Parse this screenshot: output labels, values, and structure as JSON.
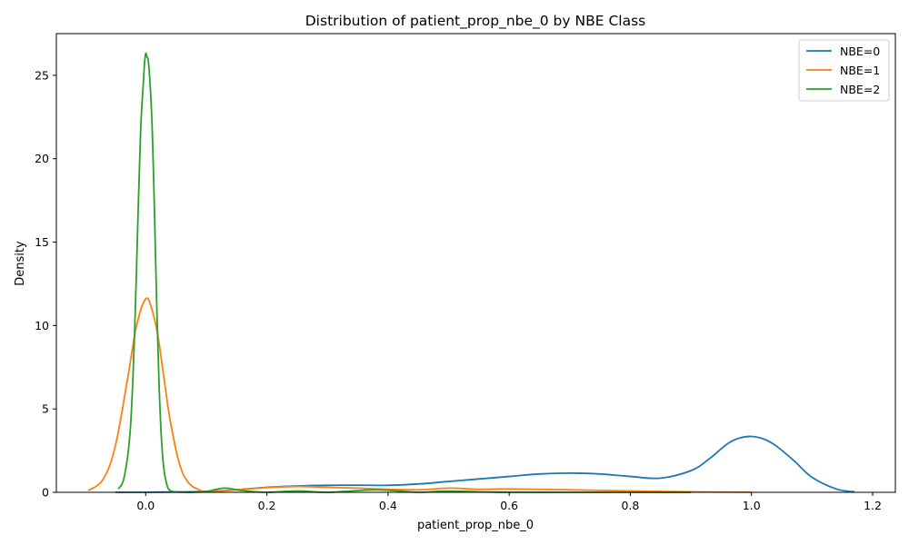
{
  "chart_data": {
    "type": "line",
    "title": "Distribution of patient_prop_nbe_0 by NBE Class",
    "xlabel": "patient_prop_nbe_0",
    "ylabel": "Density",
    "xlim": [
      -0.1475,
      1.2375
    ],
    "ylim": [
      0,
      27.5
    ],
    "xticks": [
      0.0,
      0.2,
      0.4,
      0.6,
      0.8,
      1.0,
      1.2
    ],
    "xtick_labels": [
      "0.0",
      "0.2",
      "0.4",
      "0.6",
      "0.8",
      "1.0",
      "1.2"
    ],
    "yticks": [
      0,
      5,
      10,
      15,
      20,
      25
    ],
    "ytick_labels": [
      "0",
      "5",
      "10",
      "15",
      "20",
      "25"
    ],
    "grid": false,
    "legend_position": "top-right",
    "series": [
      {
        "name": "NBE=0",
        "color": "#1f77b4",
        "x": [
          -0.05,
          0.0,
          0.1,
          0.15,
          0.2,
          0.25,
          0.3,
          0.35,
          0.4,
          0.45,
          0.5,
          0.55,
          0.6,
          0.65,
          0.7,
          0.75,
          0.8,
          0.85,
          0.9,
          0.93,
          0.96,
          0.98,
          1.0,
          1.02,
          1.04,
          1.07,
          1.1,
          1.14,
          1.17
        ],
        "y": [
          0.0,
          0.0,
          0.05,
          0.15,
          0.3,
          0.38,
          0.42,
          0.43,
          0.42,
          0.5,
          0.65,
          0.8,
          0.95,
          1.1,
          1.15,
          1.1,
          0.95,
          0.85,
          1.3,
          2.0,
          2.9,
          3.25,
          3.35,
          3.2,
          2.8,
          1.9,
          0.9,
          0.2,
          0.03
        ]
      },
      {
        "name": "NBE=1",
        "color": "#ff7f0e",
        "x": [
          -0.095,
          -0.07,
          -0.05,
          -0.03,
          -0.015,
          0.0,
          0.01,
          0.02,
          0.03,
          0.04,
          0.055,
          0.07,
          0.09,
          0.1,
          0.12,
          0.15,
          0.2,
          0.25,
          0.3,
          0.35,
          0.38,
          0.45,
          0.5,
          0.55,
          0.6,
          0.7,
          0.8,
          0.9,
          1.0
        ],
        "y": [
          0.1,
          0.8,
          2.8,
          6.8,
          10.0,
          11.6,
          11.0,
          9.4,
          6.9,
          4.4,
          1.8,
          0.6,
          0.12,
          0.05,
          0.06,
          0.15,
          0.28,
          0.35,
          0.3,
          0.25,
          0.2,
          0.15,
          0.25,
          0.18,
          0.2,
          0.15,
          0.08,
          0.03,
          0.01
        ]
      },
      {
        "name": "NBE=2",
        "color": "#2ca02c",
        "x": [
          -0.045,
          -0.035,
          -0.025,
          -0.018,
          -0.012,
          -0.008,
          -0.004,
          -0.002,
          0.0,
          0.002,
          0.005,
          0.01,
          0.014,
          0.018,
          0.022,
          0.026,
          0.03,
          0.035,
          0.04,
          0.05,
          0.07,
          0.1,
          0.13,
          0.16,
          0.2,
          0.25,
          0.3,
          0.38,
          0.45,
          0.5,
          0.6,
          0.8,
          0.9
        ],
        "y": [
          0.2,
          1.0,
          4.0,
          10.0,
          17.5,
          22.0,
          24.5,
          25.7,
          26.3,
          26.1,
          25.6,
          22.5,
          17.5,
          11.5,
          6.5,
          3.2,
          1.4,
          0.45,
          0.12,
          0.02,
          0.0,
          0.05,
          0.25,
          0.1,
          0.0,
          0.08,
          0.0,
          0.15,
          0.0,
          0.07,
          0.0,
          0.0,
          0.0
        ]
      }
    ]
  }
}
